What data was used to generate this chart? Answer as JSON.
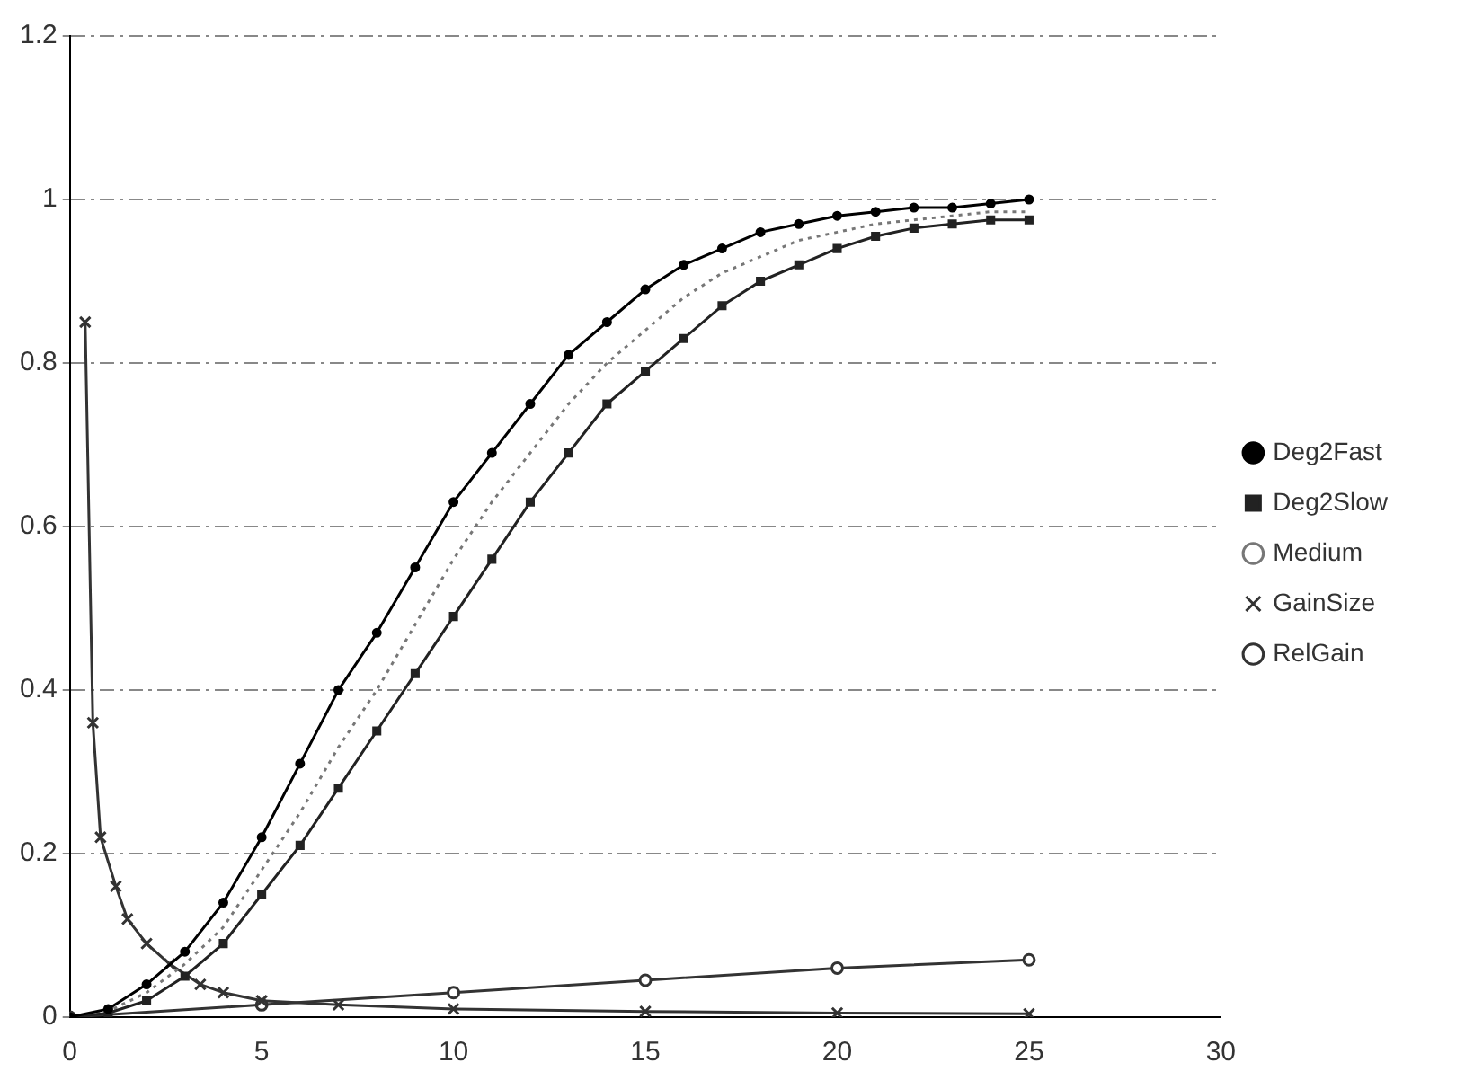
{
  "chart_data": {
    "type": "line",
    "xlim": [
      0,
      30
    ],
    "xticks": [
      0,
      5,
      10,
      15,
      20,
      25,
      30
    ],
    "ylim": [
      0,
      1.2
    ],
    "yticks": [
      0,
      0.2,
      0.4,
      0.6,
      0.8,
      1,
      1.2
    ],
    "grid": "y",
    "legend": "right",
    "series": [
      {
        "name": "Deg2Fast",
        "color": "#000000",
        "marker": "circle",
        "x": [
          0,
          1,
          2,
          3,
          4,
          5,
          6,
          7,
          8,
          9,
          10,
          11,
          12,
          13,
          14,
          15,
          16,
          17,
          18,
          19,
          20,
          21,
          22,
          23,
          24,
          25
        ],
        "values": [
          0,
          0.01,
          0.04,
          0.08,
          0.14,
          0.22,
          0.31,
          0.4,
          0.47,
          0.55,
          0.63,
          0.69,
          0.75,
          0.81,
          0.85,
          0.89,
          0.92,
          0.94,
          0.96,
          0.97,
          0.98,
          0.985,
          0.99,
          0.99,
          0.995,
          1
        ]
      },
      {
        "name": "Deg2Slow",
        "color": "#222222",
        "marker": "square",
        "x": [
          0,
          1,
          2,
          3,
          4,
          5,
          6,
          7,
          8,
          9,
          10,
          11,
          12,
          13,
          14,
          15,
          16,
          17,
          18,
          19,
          20,
          21,
          22,
          23,
          24,
          25
        ],
        "values": [
          0,
          0.005,
          0.02,
          0.05,
          0.09,
          0.15,
          0.21,
          0.28,
          0.35,
          0.42,
          0.49,
          0.56,
          0.63,
          0.69,
          0.75,
          0.79,
          0.83,
          0.87,
          0.9,
          0.92,
          0.94,
          0.955,
          0.965,
          0.97,
          0.975,
          0.975
        ]
      },
      {
        "name": "Medium",
        "color": "#777777",
        "marker": "none",
        "line_style": "dotted",
        "x": [
          0,
          1,
          2,
          3,
          4,
          5,
          6,
          7,
          8,
          9,
          10,
          11,
          12,
          13,
          14,
          15,
          16,
          17,
          18,
          19,
          20,
          21,
          22,
          23,
          24,
          25
        ],
        "values": [
          0,
          0.007,
          0.03,
          0.065,
          0.11,
          0.18,
          0.25,
          0.33,
          0.4,
          0.48,
          0.56,
          0.63,
          0.69,
          0.75,
          0.8,
          0.84,
          0.88,
          0.91,
          0.93,
          0.95,
          0.96,
          0.97,
          0.975,
          0.98,
          0.985,
          0.985
        ]
      },
      {
        "name": "GainSize",
        "color": "#333333",
        "marker": "cross",
        "x": [
          0.4,
          0.6,
          0.8,
          1.2,
          1.5,
          2,
          2.6,
          3.4,
          4,
          5,
          7,
          10,
          15,
          20,
          25
        ],
        "values": [
          0.85,
          0.36,
          0.22,
          0.16,
          0.12,
          0.09,
          0.065,
          0.04,
          0.03,
          0.02,
          0.015,
          0.01,
          0.007,
          0.005,
          0.004
        ]
      },
      {
        "name": "RelGain",
        "color": "#333333",
        "marker": "circle_open",
        "x": [
          0,
          5,
          10,
          15,
          20,
          25
        ],
        "values": [
          0,
          0.015,
          0.03,
          0.045,
          0.06,
          0.07
        ]
      }
    ]
  }
}
